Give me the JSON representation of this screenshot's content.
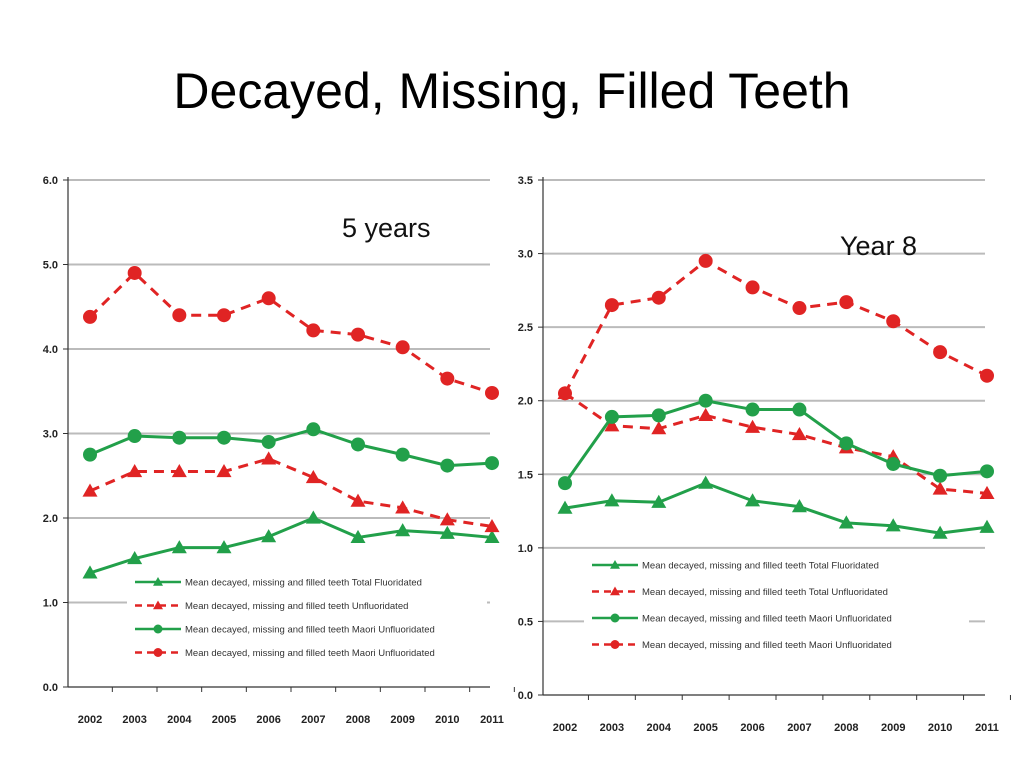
{
  "slide": {
    "title": "Decayed, Missing, Filled Teeth"
  },
  "colors": {
    "red": "#e02424",
    "green": "#22a04a",
    "grid": "#bbbbbb"
  },
  "chart_data": [
    {
      "type": "line",
      "panel_label": "5 years",
      "categories": [
        "2002",
        "2003",
        "2004",
        "2005",
        "2006",
        "2007",
        "2008",
        "2009",
        "2010",
        "2011"
      ],
      "ylim": [
        0,
        6
      ],
      "yticks": [
        "0.0",
        "1.0",
        "2.0",
        "3.0",
        "4.0",
        "5.0",
        "6.0"
      ],
      "grid": true,
      "legend_position": "bottom-right",
      "series": [
        {
          "name": "Mean decayed, missing and filled teeth Total Fluoridated",
          "color": "#22a04a",
          "dash": false,
          "marker": "triangle",
          "values": [
            1.35,
            1.52,
            1.65,
            1.65,
            1.78,
            2.0,
            1.77,
            1.85,
            1.82,
            1.77
          ]
        },
        {
          "name": "Mean decayed, missing and filled teeth Unfluoridated",
          "color": "#e02424",
          "dash": true,
          "marker": "triangle",
          "values": [
            2.32,
            2.55,
            2.55,
            2.55,
            2.7,
            2.48,
            2.2,
            2.12,
            1.98,
            1.9
          ]
        },
        {
          "name": "Mean decayed, missing and filled teeth Maori Unfluoridated",
          "color": "#22a04a",
          "dash": false,
          "marker": "circle",
          "values": [
            2.75,
            2.97,
            2.95,
            2.95,
            2.9,
            3.05,
            2.87,
            2.75,
            2.62,
            2.65
          ]
        },
        {
          "name": "Mean decayed, missing and filled teeth Maori Unfluoridated",
          "color": "#e02424",
          "dash": true,
          "marker": "circle",
          "values": [
            4.38,
            4.9,
            4.4,
            4.4,
            4.6,
            4.22,
            4.17,
            4.02,
            3.65,
            3.48
          ]
        }
      ]
    },
    {
      "type": "line",
      "panel_label": "Year 8",
      "categories": [
        "2002",
        "2003",
        "2004",
        "2005",
        "2006",
        "2007",
        "2008",
        "2009",
        "2010",
        "2011"
      ],
      "ylim": [
        0,
        3.5
      ],
      "yticks": [
        "0.0",
        "0.5",
        "1.0",
        "1.5",
        "2.0",
        "2.5",
        "3.0",
        "3.5"
      ],
      "grid": true,
      "legend_position": "bottom-left",
      "series": [
        {
          "name": "Mean decayed, missing and filled teeth Total Fluoridated",
          "color": "#22a04a",
          "dash": false,
          "marker": "triangle",
          "values": [
            1.27,
            1.32,
            1.31,
            1.44,
            1.32,
            1.28,
            1.17,
            1.15,
            1.1,
            1.14
          ]
        },
        {
          "name": "Mean decayed, missing and filled teeth Total Unfluoridated",
          "color": "#e02424",
          "dash": true,
          "marker": "triangle",
          "values": [
            2.05,
            1.83,
            1.81,
            1.9,
            1.82,
            1.77,
            1.68,
            1.62,
            1.4,
            1.37
          ]
        },
        {
          "name": "Mean decayed, missing and filled teeth Maori Unfluoridated",
          "color": "#22a04a",
          "dash": false,
          "marker": "circle",
          "values": [
            1.44,
            1.89,
            1.9,
            2.0,
            1.94,
            1.94,
            1.71,
            1.57,
            1.49,
            1.52
          ]
        },
        {
          "name": "Mean decayed, missing and filled teeth Maori Unfluoridated",
          "color": "#e02424",
          "dash": true,
          "marker": "circle",
          "values": [
            2.05,
            2.65,
            2.7,
            2.95,
            2.77,
            2.63,
            2.67,
            2.54,
            2.33,
            2.17
          ]
        }
      ]
    }
  ]
}
